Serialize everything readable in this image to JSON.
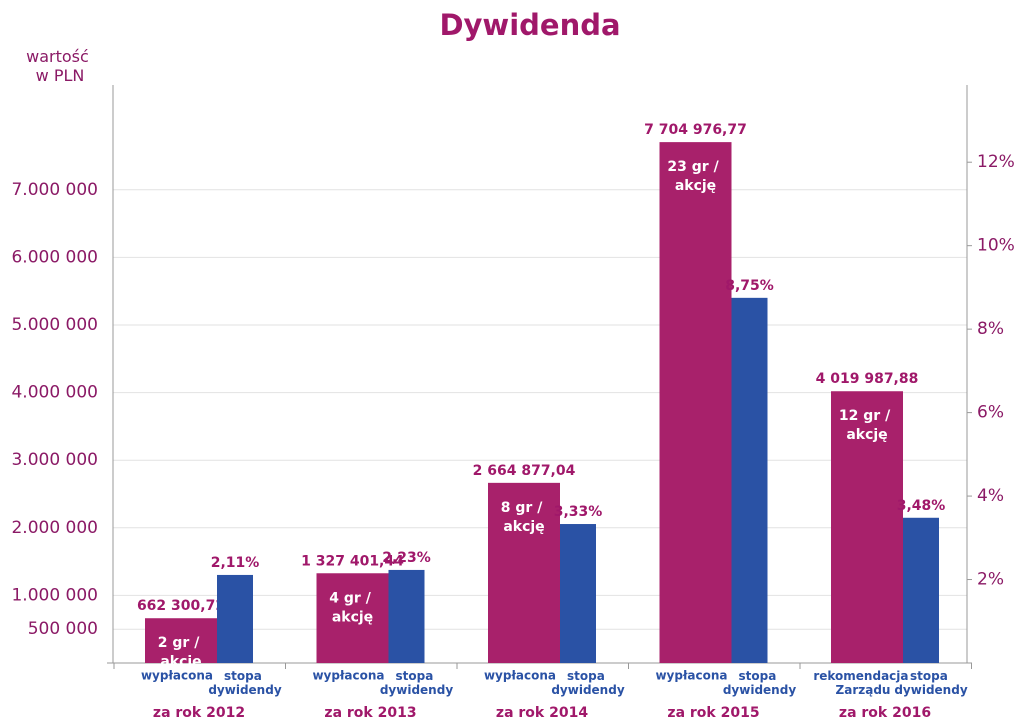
{
  "chart_data": {
    "type": "bar",
    "title": "Dywidenda",
    "y_label": "wartość w PLN",
    "categories": [
      "za rok 2012",
      "za rok 2013",
      "za rok 2014",
      "za rok 2015",
      "za rok 2016"
    ],
    "series": [
      {
        "color": "#a8216b",
        "values": [
          662300.72,
          1327401.44,
          2664877.04,
          7704976.77,
          4019987.88
        ],
        "value_labels": [
          "662 300,72",
          "1 327 401,44",
          "2 664 877,04",
          "7 704 976,77",
          "4 019 987,88"
        ],
        "bar_labels": [
          "2 gr / akcję",
          "4 gr / akcję",
          "8 gr / akcję",
          "23 gr / akcję",
          "12 gr / akcję"
        ],
        "sub_labels": [
          "wypłacona",
          "wypłacona",
          "wypłacona",
          "wypłacona",
          "rekomendacja Zarządu"
        ]
      },
      {
        "color": "#2a52a5",
        "axis": "y2",
        "values": [
          2.11,
          2.23,
          3.33,
          8.75,
          3.48
        ],
        "value_labels": [
          "2,11%",
          "2,23%",
          "3,33%",
          "8,75%",
          "3,48%"
        ],
        "sub_labels": [
          "stopa dywidendy",
          "stopa dywidendy",
          "stopa dywidendy",
          "stopa dywidendy",
          "stopa dywidendy"
        ]
      }
    ],
    "ylim": [
      0,
      8550000
    ],
    "yticks": [
      {
        "value": 500000,
        "label": "500 000"
      },
      {
        "value": 1000000,
        "label": "1.000 000"
      },
      {
        "value": 2000000,
        "label": "2.000 000"
      },
      {
        "value": 3000000,
        "label": "3.000 000"
      },
      {
        "value": 4000000,
        "label": "4.000 000"
      },
      {
        "value": 5000000,
        "label": "5.000 000"
      },
      {
        "value": 6000000,
        "label": "6.000 000"
      },
      {
        "value": 7000000,
        "label": "7.000 000"
      }
    ],
    "y2lim": [
      0,
      13.85
    ],
    "y2ticks": [
      {
        "value": 2,
        "label": "2%"
      },
      {
        "value": 4,
        "label": "4%"
      },
      {
        "value": 6,
        "label": "6%"
      },
      {
        "value": 8,
        "label": "8%"
      },
      {
        "value": 10,
        "label": "10%"
      },
      {
        "value": 12,
        "label": "12%"
      }
    ],
    "grid": true
  }
}
